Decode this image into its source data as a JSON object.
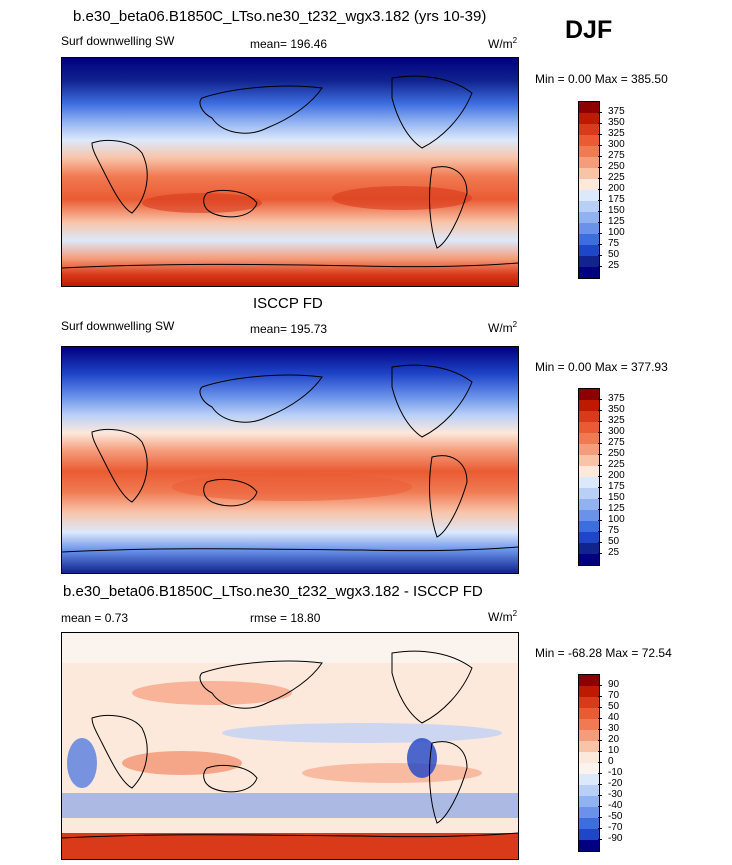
{
  "header": {
    "title": "b.e30_beta06.B1850C_LTso.ne30_t232_wgx3.182 (yrs 10-39)",
    "season": "DJF"
  },
  "panels": [
    {
      "title": "",
      "variable": "Surf downwelling SW",
      "stat": "mean= 196.46",
      "units": "W/m",
      "units_sup": "2",
      "minmax": "Min =   0.00 Max = 385.50",
      "levels": [
        "375",
        "350",
        "325",
        "300",
        "275",
        "250",
        "225",
        "200",
        "175",
        "150",
        "125",
        "100",
        "75",
        "50",
        "25"
      ],
      "colors": [
        "#8c0000",
        "#bd1a00",
        "#d93a1a",
        "#ea5b33",
        "#f07a52",
        "#f59c7a",
        "#f9c3a8",
        "#fde8dc",
        "#dce9fb",
        "#b8cff8",
        "#91b2f1",
        "#6a92ea",
        "#3d6ee0",
        "#1f45c8",
        "#10238f",
        "#000080"
      ]
    },
    {
      "title": "ISCCP FD",
      "variable": "Surf downwelling SW",
      "stat": "mean= 195.73",
      "units": "W/m",
      "units_sup": "2",
      "minmax": "Min =   0.00 Max = 377.93",
      "levels": [
        "375",
        "350",
        "325",
        "300",
        "275",
        "250",
        "225",
        "200",
        "175",
        "150",
        "125",
        "100",
        "75",
        "50",
        "25"
      ],
      "colors": [
        "#8c0000",
        "#bd1a00",
        "#d93a1a",
        "#ea5b33",
        "#f07a52",
        "#f59c7a",
        "#f9c3a8",
        "#fde8dc",
        "#dce9fb",
        "#b8cff8",
        "#91b2f1",
        "#6a92ea",
        "#3d6ee0",
        "#1f45c8",
        "#10238f",
        "#000080"
      ]
    },
    {
      "title": "b.e30_beta06.B1850C_LTso.ne30_t232_wgx3.182 - ISCCP FD",
      "variable": "",
      "stat": "mean =   0.73",
      "stat2": "rmse =  18.80",
      "units": "W/m",
      "units_sup": "2",
      "minmax": "Min = -68.28 Max =  72.54",
      "levels": [
        "90",
        "70",
        "50",
        "40",
        "30",
        "20",
        "10",
        "0",
        "-10",
        "-20",
        "-30",
        "-40",
        "-50",
        "-70",
        "-90"
      ],
      "colors": [
        "#8c0000",
        "#bd1a00",
        "#d93a1a",
        "#ea5b33",
        "#f07a52",
        "#f59c7a",
        "#f9c3a8",
        "#fde8dc",
        "#fbf4ee",
        "#dce9fb",
        "#b8cff8",
        "#91b2f1",
        "#6a92ea",
        "#3d6ee0",
        "#1f45c8",
        "#000080"
      ]
    }
  ],
  "chart_data": [
    {
      "type": "heatmap",
      "title": "b.e30_beta06.B1850C_LTso.ne30_t232_wgx3.182 (yrs 10-39)",
      "subtitle": "Surf downwelling SW",
      "season": "DJF",
      "mean": 196.46,
      "min": 0.0,
      "max": 385.5,
      "units": "W/m2",
      "colorbar_levels": [
        25,
        50,
        75,
        100,
        125,
        150,
        175,
        200,
        225,
        250,
        275,
        300,
        325,
        350,
        375
      ]
    },
    {
      "type": "heatmap",
      "title": "ISCCP FD",
      "subtitle": "Surf downwelling SW",
      "mean": 195.73,
      "min": 0.0,
      "max": 377.93,
      "units": "W/m2",
      "colorbar_levels": [
        25,
        50,
        75,
        100,
        125,
        150,
        175,
        200,
        225,
        250,
        275,
        300,
        325,
        350,
        375
      ]
    },
    {
      "type": "heatmap",
      "title": "b.e30_beta06.B1850C_LTso.ne30_t232_wgx3.182 - ISCCP FD",
      "mean": 0.73,
      "rmse": 18.8,
      "min": -68.28,
      "max": 72.54,
      "units": "W/m2",
      "colorbar_levels": [
        -90,
        -70,
        -50,
        -40,
        -30,
        -20,
        -10,
        0,
        10,
        20,
        30,
        40,
        50,
        70,
        90
      ]
    }
  ]
}
